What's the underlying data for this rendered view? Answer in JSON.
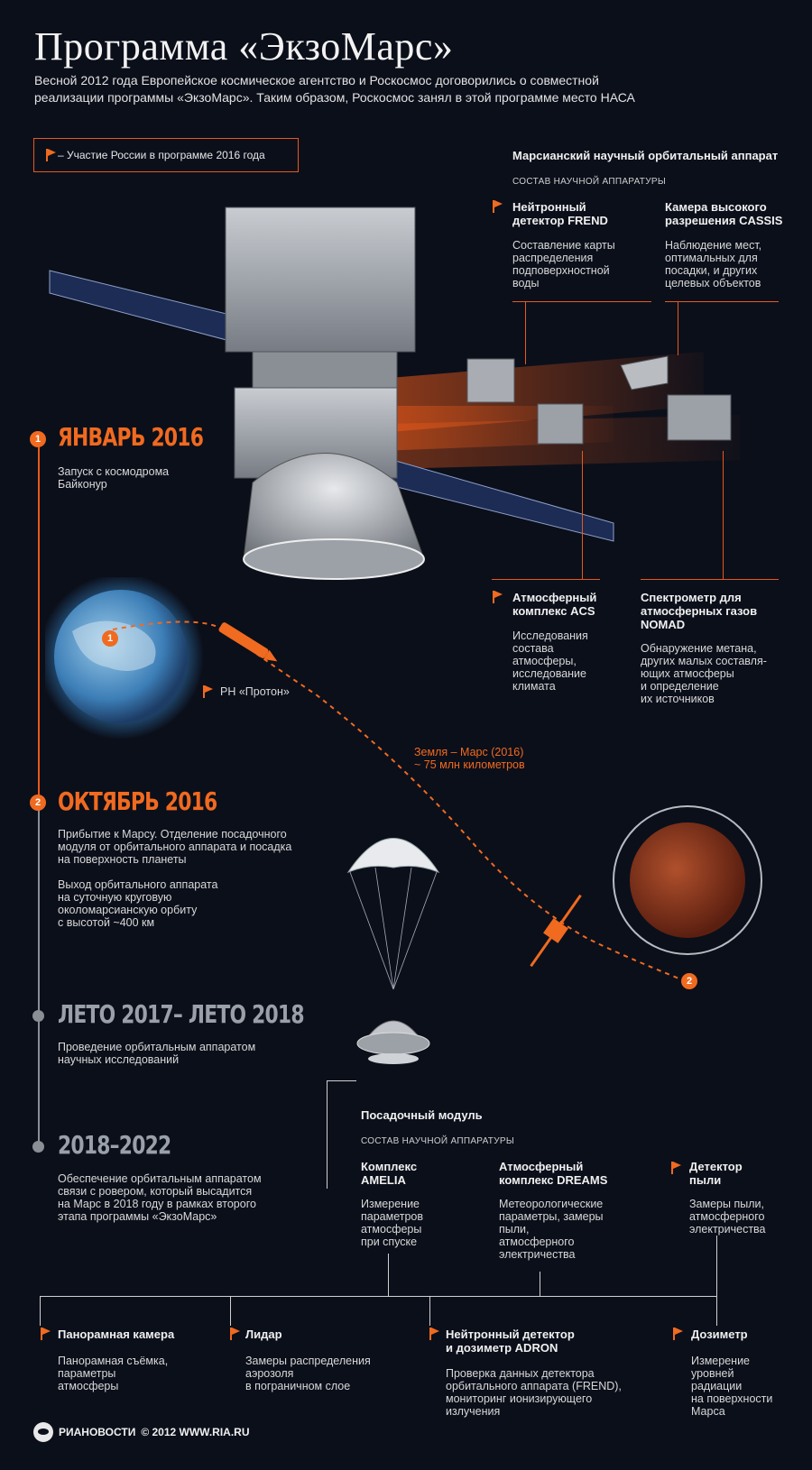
{
  "title": "Программа «ЭкзоМарс»",
  "intro": [
    "Весной 2012 года Европейское космическое агентство и Роскосмос договорились о совместной",
    "реализации программы «ЭкзоМарс». Таким образом, Роскосмос занял в этой программе место НАСА"
  ],
  "legend": "– Участие России в программе 2016 года",
  "orbiter": {
    "title": "Марсианский научный орбитальный аппарат",
    "subtitle": "СОСТАВ НАУЧНОЙ АППАРАТУРЫ",
    "instruments": [
      {
        "name": [
          "Нейтронный",
          "детектор FREND"
        ],
        "desc": [
          "Составление карты",
          "распределения",
          "подповерхностной",
          "воды"
        ]
      },
      {
        "name": [
          "Камера высокого",
          "разрешения CASSIS"
        ],
        "desc": [
          "Наблюдение мест,",
          "оптимальных для",
          "посадки, и других",
          "целевых объектов"
        ]
      },
      {
        "name": [
          "Атмосферный",
          "комплекс ACS"
        ],
        "desc": [
          "Исследования",
          "состава",
          "атмосферы,",
          "исследование",
          "климата"
        ]
      },
      {
        "name": [
          "Спектрометр для",
          "атмосферных газов",
          "NOMAD"
        ],
        "desc": [
          "Обнаружение метана,",
          "других малых составля-",
          "ющих атмосферы",
          "и определение",
          "их источников"
        ]
      }
    ]
  },
  "timeline": [
    {
      "marker": "1",
      "date": "ЯНВАРЬ 2016",
      "desc": [
        "Запуск с космодрома",
        "Байконур"
      ]
    },
    {
      "marker": "2",
      "date": "ОКТЯБРЬ 2016",
      "desc": [
        "Прибытие к Марсу. Отделение посадочного",
        "модуля от орбитального аппарата и посадка",
        "на поверхность планеты"
      ],
      "desc2": [
        "Выход орбитального аппарата",
        "на суточную круговую",
        "околомарсианскую орбиту",
        "с высотой ~400 км"
      ]
    },
    {
      "marker": "",
      "date": "ЛЕТО 2017– ЛЕТО 2018",
      "desc": [
        "Проведение орбитальным аппаратом",
        "научных исследований"
      ]
    },
    {
      "marker": "",
      "date": "2018–2022",
      "desc": [
        "Обеспечение орбитальным аппаратом",
        "связи с ровером, который высадится",
        "на Марс в 2018 году в рамках второго",
        "этапа программы «ЭкзоМарс»"
      ]
    }
  ],
  "rocket_label": "РН «Протон»",
  "trajectory": [
    "Земля – Марс (2016)",
    "~ 75 млн километров"
  ],
  "earth_marker": "1",
  "mars_marker": "2",
  "lander": {
    "title": "Посадочный модуль",
    "subtitle": "СОСТАВ НАУЧНОЙ АППАРАТУРЫ",
    "instruments": [
      {
        "name": [
          "Комплекс",
          "AMELIA"
        ],
        "desc": [
          "Измерение",
          "параметров",
          "атмосферы",
          "при спуске"
        ],
        "flag": false
      },
      {
        "name": [
          "Атмосферный",
          "комплекс DREAMS"
        ],
        "desc": [
          "Метеорологические",
          "параметры, замеры",
          "пыли,",
          "атмосферного",
          "электричества"
        ],
        "flag": false
      },
      {
        "name": [
          "Детектор",
          "пыли"
        ],
        "desc": [
          "Замеры пыли,",
          "атмосферного",
          "электричества"
        ],
        "flag": true
      },
      {
        "name": [
          "Панорамная камера"
        ],
        "desc": [
          "Панорамная съёмка,",
          "параметры",
          "атмосферы"
        ],
        "flag": true
      },
      {
        "name": [
          "Лидар"
        ],
        "desc": [
          "Замеры распределения",
          "аэрозоля",
          "в пограничном слое"
        ],
        "flag": true
      },
      {
        "name": [
          "Нейтронный детектор",
          "и дозиметр ADRON"
        ],
        "desc": [
          "Проверка данных детектора",
          "орбитального аппарата (FREND),",
          "мониторинг ионизирующего",
          "излучения"
        ],
        "flag": true
      },
      {
        "name": [
          "Дозиметр"
        ],
        "desc": [
          "Измерение",
          "уровней",
          "радиации",
          "на поверхности",
          "Марса"
        ],
        "flag": true
      }
    ]
  },
  "footer": {
    "brand": "РИАНОВОСТИ",
    "copyright": "© 2012 WWW.RIA.RU"
  }
}
